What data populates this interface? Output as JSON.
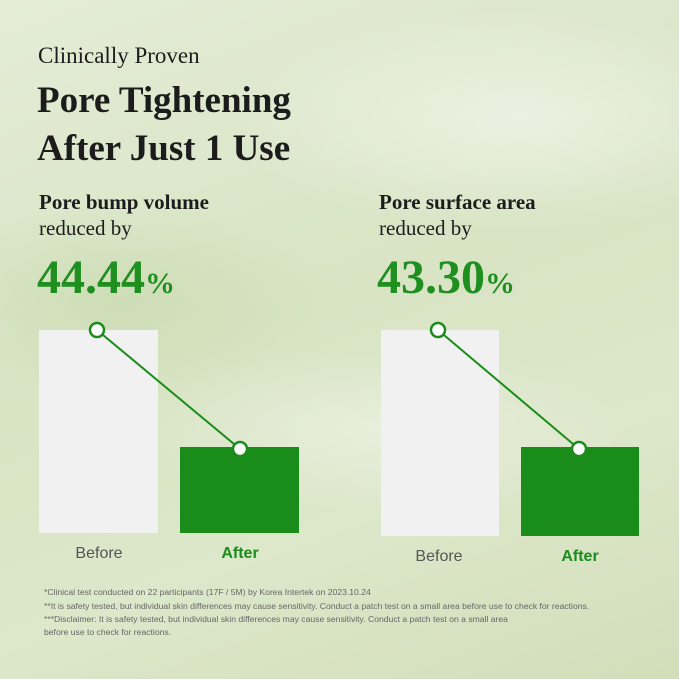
{
  "header": {
    "eyebrow": "Clinically Proven",
    "title_lines": [
      "Pore Tightening",
      "After Just 1 Use"
    ]
  },
  "panels": [
    {
      "label_lines": [
        "Pore bump volume",
        "reduced by"
      ],
      "percent": {
        "number": "44.44",
        "sign": "%"
      },
      "before": "Before",
      "after": "After"
    },
    {
      "label_lines": [
        "Pore surface area",
        "reduced by"
      ],
      "percent": {
        "number": "43.30",
        "sign": "%"
      },
      "before": "Before",
      "after": "After"
    }
  ],
  "footnotes": [
    "*Clinical test conducted on 22 participants (17F / 5M) by Korea Intertek on 2023.10.24",
    "**It is safety tested, but individual skin differences may cause sensitivity. Conduct a patch test on a small area before use to check for reactions.",
    "***Disclaimer: It is safety tested, but individual skin differences may cause sensitivity. Conduct a patch test on a small area",
    "before use to check for reactions."
  ]
}
